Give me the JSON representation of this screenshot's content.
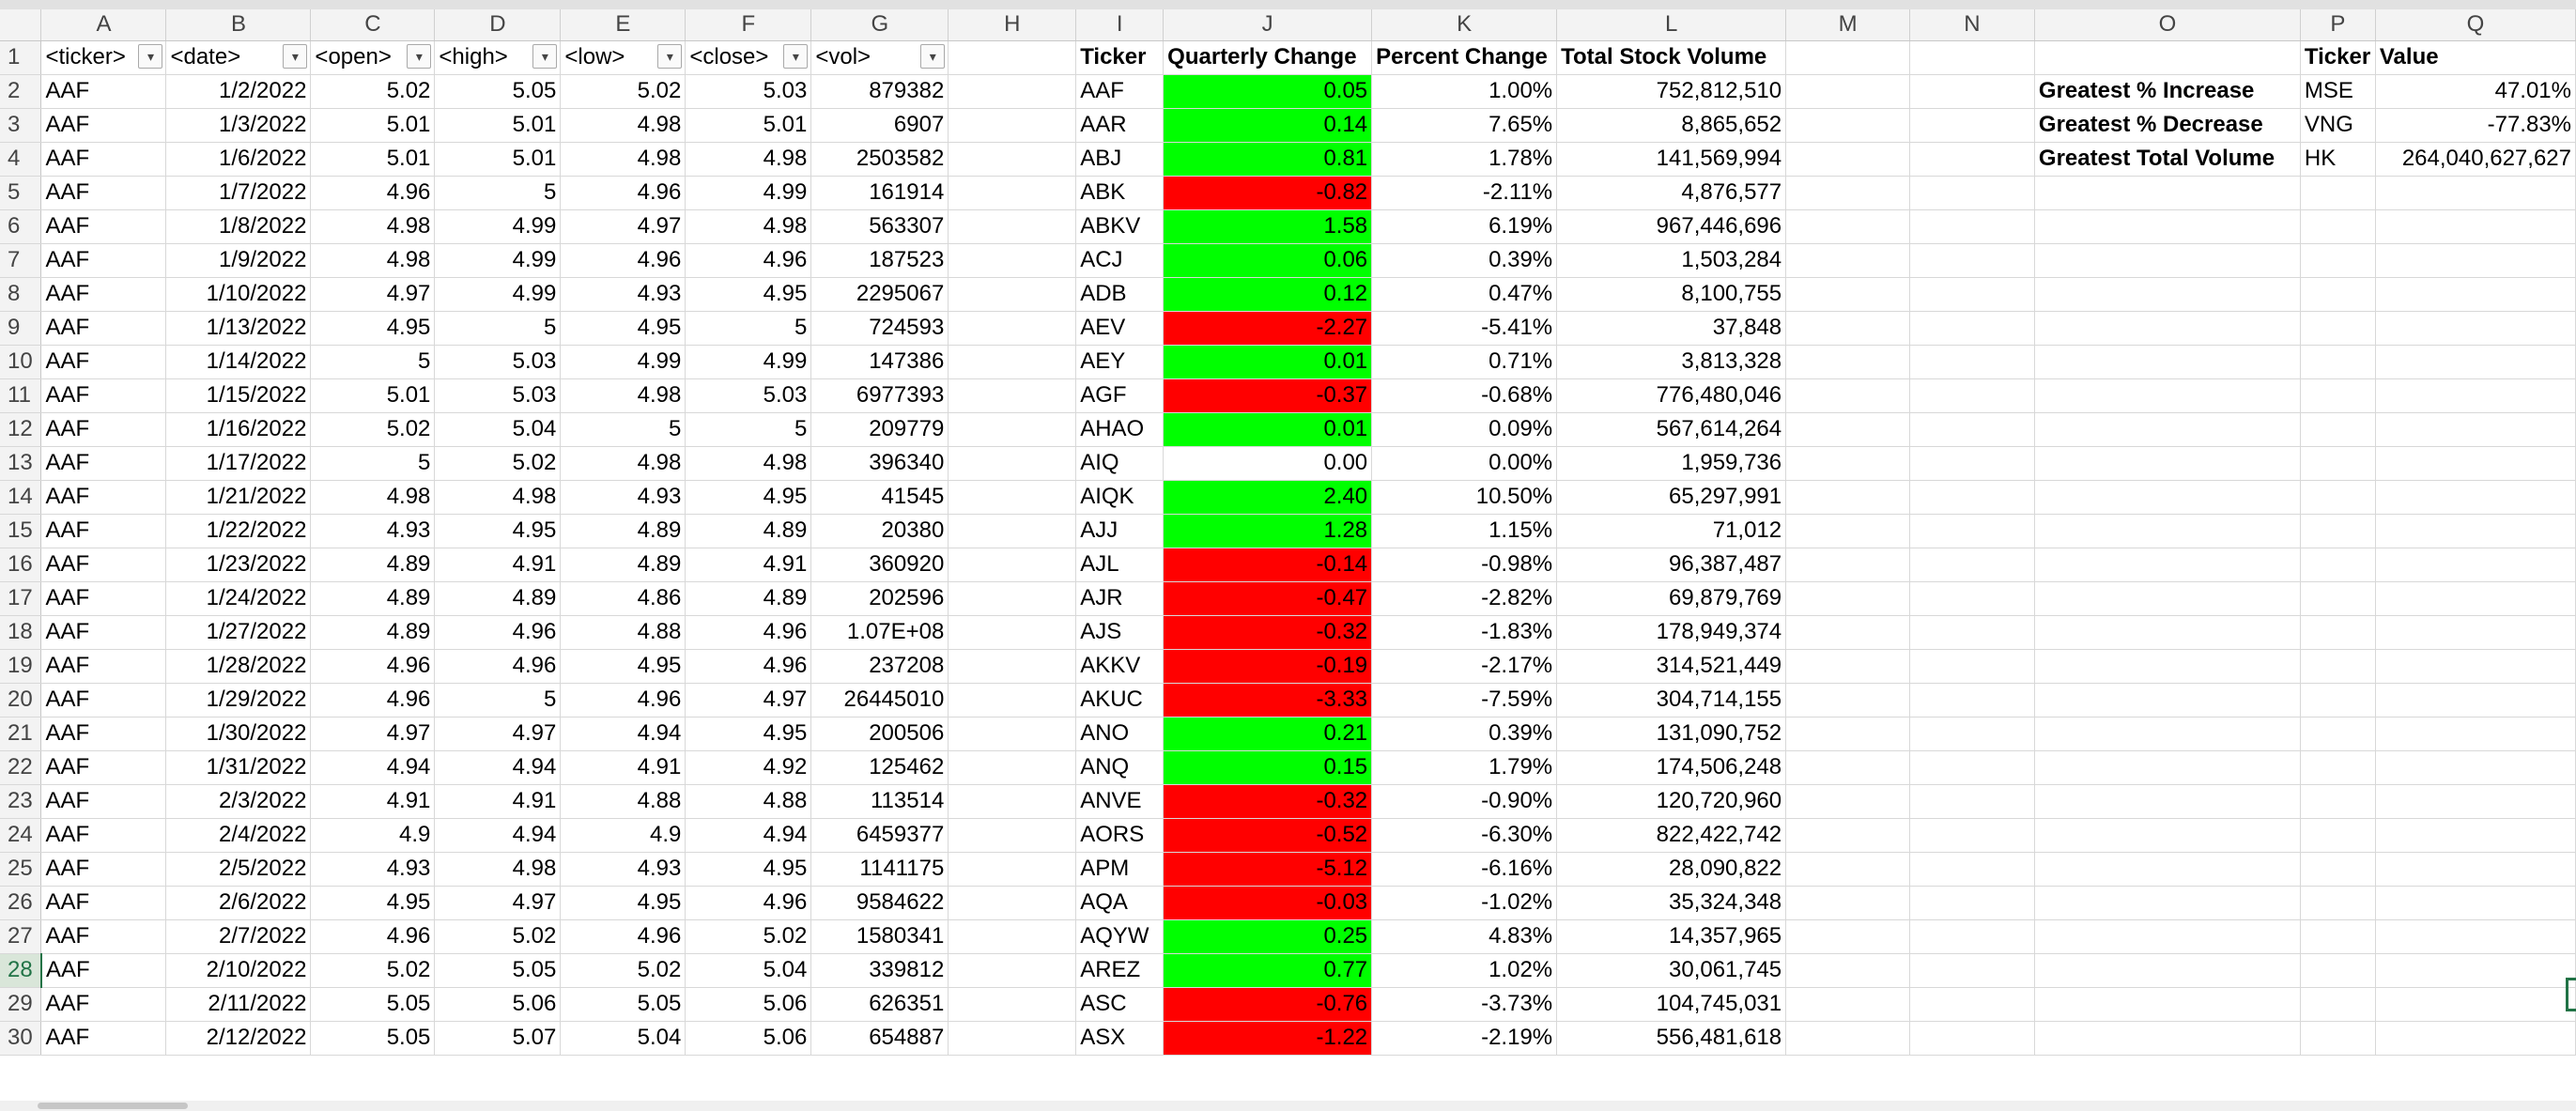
{
  "columns": [
    "A",
    "B",
    "C",
    "D",
    "E",
    "F",
    "G",
    "H",
    "I",
    "J",
    "K",
    "L",
    "M",
    "N",
    "O",
    "P",
    "Q"
  ],
  "source_headers": [
    "<ticker>",
    "<date>",
    "<open>",
    "<high>",
    "<low>",
    "<close>",
    "<vol>"
  ],
  "summary_headers": [
    "Ticker",
    "Quarterly Change",
    "Percent Change",
    "Total Stock Volume"
  ],
  "result_headers": [
    "Ticker",
    "Value"
  ],
  "rows": [
    {
      "n": "2",
      "d": [
        "AAF",
        "1/2/2022",
        "5.02",
        "5.05",
        "5.02",
        "5.03",
        "879382"
      ],
      "s": [
        "AAF",
        "0.05",
        "1.00%",
        "752,812,510"
      ],
      "sign": "pos",
      "o": "Greatest % Increase",
      "p": "MSE",
      "q": "47.01%"
    },
    {
      "n": "3",
      "d": [
        "AAF",
        "1/3/2022",
        "5.01",
        "5.01",
        "4.98",
        "5.01",
        "6907"
      ],
      "s": [
        "AAR",
        "0.14",
        "7.65%",
        "8,865,652"
      ],
      "sign": "pos",
      "o": "Greatest % Decrease",
      "p": "VNG",
      "q": "-77.83%"
    },
    {
      "n": "4",
      "d": [
        "AAF",
        "1/6/2022",
        "5.01",
        "5.01",
        "4.98",
        "4.98",
        "2503582"
      ],
      "s": [
        "ABJ",
        "0.81",
        "1.78%",
        "141,569,994"
      ],
      "sign": "pos",
      "o": "Greatest Total Volume",
      "p": "HK",
      "q": "264,040,627,627"
    },
    {
      "n": "5",
      "d": [
        "AAF",
        "1/7/2022",
        "4.96",
        "5",
        "4.96",
        "4.99",
        "161914"
      ],
      "s": [
        "ABK",
        "-0.82",
        "-2.11%",
        "4,876,577"
      ],
      "sign": "neg",
      "o": "",
      "p": "",
      "q": ""
    },
    {
      "n": "6",
      "d": [
        "AAF",
        "1/8/2022",
        "4.98",
        "4.99",
        "4.97",
        "4.98",
        "563307"
      ],
      "s": [
        "ABKV",
        "1.58",
        "6.19%",
        "967,446,696"
      ],
      "sign": "pos",
      "o": "",
      "p": "",
      "q": ""
    },
    {
      "n": "7",
      "d": [
        "AAF",
        "1/9/2022",
        "4.98",
        "4.99",
        "4.96",
        "4.96",
        "187523"
      ],
      "s": [
        "ACJ",
        "0.06",
        "0.39%",
        "1,503,284"
      ],
      "sign": "pos",
      "o": "",
      "p": "",
      "q": ""
    },
    {
      "n": "8",
      "d": [
        "AAF",
        "1/10/2022",
        "4.97",
        "4.99",
        "4.93",
        "4.95",
        "2295067"
      ],
      "s": [
        "ADB",
        "0.12",
        "0.47%",
        "8,100,755"
      ],
      "sign": "pos",
      "o": "",
      "p": "",
      "q": ""
    },
    {
      "n": "9",
      "d": [
        "AAF",
        "1/13/2022",
        "4.95",
        "5",
        "4.95",
        "5",
        "724593"
      ],
      "s": [
        "AEV",
        "-2.27",
        "-5.41%",
        "37,848"
      ],
      "sign": "neg",
      "o": "",
      "p": "",
      "q": ""
    },
    {
      "n": "10",
      "d": [
        "AAF",
        "1/14/2022",
        "5",
        "5.03",
        "4.99",
        "4.99",
        "147386"
      ],
      "s": [
        "AEY",
        "0.01",
        "0.71%",
        "3,813,328"
      ],
      "sign": "pos",
      "o": "",
      "p": "",
      "q": ""
    },
    {
      "n": "11",
      "d": [
        "AAF",
        "1/15/2022",
        "5.01",
        "5.03",
        "4.98",
        "5.03",
        "6977393"
      ],
      "s": [
        "AGF",
        "-0.37",
        "-0.68%",
        "776,480,046"
      ],
      "sign": "neg",
      "o": "",
      "p": "",
      "q": ""
    },
    {
      "n": "12",
      "d": [
        "AAF",
        "1/16/2022",
        "5.02",
        "5.04",
        "5",
        "5",
        "209779"
      ],
      "s": [
        "AHAO",
        "0.01",
        "0.09%",
        "567,614,264"
      ],
      "sign": "pos",
      "o": "",
      "p": "",
      "q": ""
    },
    {
      "n": "13",
      "d": [
        "AAF",
        "1/17/2022",
        "5",
        "5.02",
        "4.98",
        "4.98",
        "396340"
      ],
      "s": [
        "AIQ",
        "0.00",
        "0.00%",
        "1,959,736"
      ],
      "sign": "zero",
      "o": "",
      "p": "",
      "q": ""
    },
    {
      "n": "14",
      "d": [
        "AAF",
        "1/21/2022",
        "4.98",
        "4.98",
        "4.93",
        "4.95",
        "41545"
      ],
      "s": [
        "AIQK",
        "2.40",
        "10.50%",
        "65,297,991"
      ],
      "sign": "pos",
      "o": "",
      "p": "",
      "q": ""
    },
    {
      "n": "15",
      "d": [
        "AAF",
        "1/22/2022",
        "4.93",
        "4.95",
        "4.89",
        "4.89",
        "20380"
      ],
      "s": [
        "AJJ",
        "1.28",
        "1.15%",
        "71,012"
      ],
      "sign": "pos",
      "o": "",
      "p": "",
      "q": ""
    },
    {
      "n": "16",
      "d": [
        "AAF",
        "1/23/2022",
        "4.89",
        "4.91",
        "4.89",
        "4.91",
        "360920"
      ],
      "s": [
        "AJL",
        "-0.14",
        "-0.98%",
        "96,387,487"
      ],
      "sign": "neg",
      "o": "",
      "p": "",
      "q": ""
    },
    {
      "n": "17",
      "d": [
        "AAF",
        "1/24/2022",
        "4.89",
        "4.89",
        "4.86",
        "4.89",
        "202596"
      ],
      "s": [
        "AJR",
        "-0.47",
        "-2.82%",
        "69,879,769"
      ],
      "sign": "neg",
      "o": "",
      "p": "",
      "q": ""
    },
    {
      "n": "18",
      "d": [
        "AAF",
        "1/27/2022",
        "4.89",
        "4.96",
        "4.88",
        "4.96",
        "1.07E+08"
      ],
      "s": [
        "AJS",
        "-0.32",
        "-1.83%",
        "178,949,374"
      ],
      "sign": "neg",
      "o": "",
      "p": "",
      "q": ""
    },
    {
      "n": "19",
      "d": [
        "AAF",
        "1/28/2022",
        "4.96",
        "4.96",
        "4.95",
        "4.96",
        "237208"
      ],
      "s": [
        "AKKV",
        "-0.19",
        "-2.17%",
        "314,521,449"
      ],
      "sign": "neg",
      "o": "",
      "p": "",
      "q": ""
    },
    {
      "n": "20",
      "d": [
        "AAF",
        "1/29/2022",
        "4.96",
        "5",
        "4.96",
        "4.97",
        "26445010"
      ],
      "s": [
        "AKUC",
        "-3.33",
        "-7.59%",
        "304,714,155"
      ],
      "sign": "neg",
      "o": "",
      "p": "",
      "q": ""
    },
    {
      "n": "21",
      "d": [
        "AAF",
        "1/30/2022",
        "4.97",
        "4.97",
        "4.94",
        "4.95",
        "200506"
      ],
      "s": [
        "ANO",
        "0.21",
        "0.39%",
        "131,090,752"
      ],
      "sign": "pos",
      "o": "",
      "p": "",
      "q": ""
    },
    {
      "n": "22",
      "d": [
        "AAF",
        "1/31/2022",
        "4.94",
        "4.94",
        "4.91",
        "4.92",
        "125462"
      ],
      "s": [
        "ANQ",
        "0.15",
        "1.79%",
        "174,506,248"
      ],
      "sign": "pos",
      "o": "",
      "p": "",
      "q": ""
    },
    {
      "n": "23",
      "d": [
        "AAF",
        "2/3/2022",
        "4.91",
        "4.91",
        "4.88",
        "4.88",
        "113514"
      ],
      "s": [
        "ANVE",
        "-0.32",
        "-0.90%",
        "120,720,960"
      ],
      "sign": "neg",
      "o": "",
      "p": "",
      "q": ""
    },
    {
      "n": "24",
      "d": [
        "AAF",
        "2/4/2022",
        "4.9",
        "4.94",
        "4.9",
        "4.94",
        "6459377"
      ],
      "s": [
        "AORS",
        "-0.52",
        "-6.30%",
        "822,422,742"
      ],
      "sign": "neg",
      "o": "",
      "p": "",
      "q": ""
    },
    {
      "n": "25",
      "d": [
        "AAF",
        "2/5/2022",
        "4.93",
        "4.98",
        "4.93",
        "4.95",
        "1141175"
      ],
      "s": [
        "APM",
        "-5.12",
        "-6.16%",
        "28,090,822"
      ],
      "sign": "neg",
      "o": "",
      "p": "",
      "q": ""
    },
    {
      "n": "26",
      "d": [
        "AAF",
        "2/6/2022",
        "4.95",
        "4.97",
        "4.95",
        "4.96",
        "9584622"
      ],
      "s": [
        "AQA",
        "-0.03",
        "-1.02%",
        "35,324,348"
      ],
      "sign": "neg",
      "o": "",
      "p": "",
      "q": ""
    },
    {
      "n": "27",
      "d": [
        "AAF",
        "2/7/2022",
        "4.96",
        "5.02",
        "4.96",
        "5.02",
        "1580341"
      ],
      "s": [
        "AQYW",
        "0.25",
        "4.83%",
        "14,357,965"
      ],
      "sign": "pos",
      "o": "",
      "p": "",
      "q": ""
    },
    {
      "n": "28",
      "d": [
        "AAF",
        "2/10/2022",
        "5.02",
        "5.05",
        "5.02",
        "5.04",
        "339812"
      ],
      "s": [
        "AREZ",
        "0.77",
        "1.02%",
        "30,061,745"
      ],
      "sign": "pos",
      "o": "",
      "p": "",
      "q": ""
    },
    {
      "n": "29",
      "d": [
        "AAF",
        "2/11/2022",
        "5.05",
        "5.06",
        "5.05",
        "5.06",
        "626351"
      ],
      "s": [
        "ASC",
        "-0.76",
        "-3.73%",
        "104,745,031"
      ],
      "sign": "neg",
      "o": "",
      "p": "",
      "q": ""
    },
    {
      "n": "30",
      "d": [
        "AAF",
        "2/12/2022",
        "5.05",
        "5.07",
        "5.04",
        "5.06",
        "654887"
      ],
      "s": [
        "ASX",
        "-1.22",
        "-2.19%",
        "556,481,618"
      ],
      "sign": "neg",
      "o": "",
      "p": "",
      "q": ""
    }
  ],
  "active_row": "28",
  "colors": {
    "positive": "#00ff00",
    "negative": "#ff0000",
    "selection": "#217346"
  },
  "icons": {
    "filter": "dropdown-arrow-icon"
  }
}
